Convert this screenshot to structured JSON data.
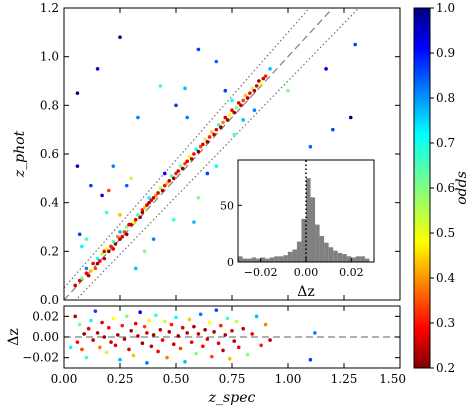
{
  "chart_data": [
    {
      "panel": "main",
      "type": "scatter",
      "xlabel": "",
      "ylabel": "z_phot",
      "xlim": [
        0,
        1.5
      ],
      "ylim": [
        0,
        1.2
      ],
      "x_ticks": [],
      "y_ticks": [
        "0.0",
        "0.2",
        "0.4",
        "0.6",
        "0.8",
        "1.0",
        "1.2"
      ],
      "reference_lines": [
        {
          "kind": "dashed",
          "description": "one-to-one",
          "slope": 1.0,
          "intercept": 0.0,
          "color": "#808080"
        },
        {
          "kind": "dotted",
          "description": "upper bound",
          "slope": 1.05,
          "intercept": 0.05,
          "color": "#707070"
        },
        {
          "kind": "dotted",
          "description": "lower bound",
          "slope": 0.95,
          "intercept": -0.05,
          "color": "#707070"
        }
      ],
      "colormap": "jet",
      "color_variable": "odds",
      "points_approx": [
        [
          0.05,
          0.06,
          0.95
        ],
        [
          0.07,
          0.08,
          0.92
        ],
        [
          0.08,
          0.09,
          0.6
        ],
        [
          0.1,
          0.11,
          0.9
        ],
        [
          0.1,
          0.13,
          0.4
        ],
        [
          0.11,
          0.1,
          0.95
        ],
        [
          0.12,
          0.12,
          0.75
        ],
        [
          0.13,
          0.15,
          0.92
        ],
        [
          0.14,
          0.13,
          0.85
        ],
        [
          0.15,
          0.15,
          0.98
        ],
        [
          0.15,
          0.17,
          0.5
        ],
        [
          0.16,
          0.16,
          0.9
        ],
        [
          0.17,
          0.19,
          0.65
        ],
        [
          0.18,
          0.17,
          0.95
        ],
        [
          0.18,
          0.2,
          0.92
        ],
        [
          0.19,
          0.21,
          0.7
        ],
        [
          0.2,
          0.2,
          0.98
        ],
        [
          0.21,
          0.22,
          0.88
        ],
        [
          0.22,
          0.24,
          0.55
        ],
        [
          0.22,
          0.21,
          0.93
        ],
        [
          0.23,
          0.23,
          0.96
        ],
        [
          0.24,
          0.26,
          0.8
        ],
        [
          0.25,
          0.25,
          0.97
        ],
        [
          0.25,
          0.28,
          0.45
        ],
        [
          0.26,
          0.26,
          0.92
        ],
        [
          0.27,
          0.28,
          0.85
        ],
        [
          0.28,
          0.3,
          0.6
        ],
        [
          0.28,
          0.27,
          0.98
        ],
        [
          0.29,
          0.31,
          0.9
        ],
        [
          0.3,
          0.31,
          0.95
        ],
        [
          0.31,
          0.32,
          0.7
        ],
        [
          0.32,
          0.33,
          0.92
        ],
        [
          0.33,
          0.35,
          0.55
        ],
        [
          0.34,
          0.34,
          0.96
        ],
        [
          0.35,
          0.37,
          0.88
        ],
        [
          0.35,
          0.36,
          0.98
        ],
        [
          0.36,
          0.38,
          0.75
        ],
        [
          0.37,
          0.39,
          0.93
        ],
        [
          0.38,
          0.4,
          0.97
        ],
        [
          0.38,
          0.42,
          0.5
        ],
        [
          0.39,
          0.41,
          0.9
        ],
        [
          0.4,
          0.42,
          0.95
        ],
        [
          0.41,
          0.43,
          0.8
        ],
        [
          0.42,
          0.44,
          0.92
        ],
        [
          0.43,
          0.46,
          0.65
        ],
        [
          0.44,
          0.45,
          0.97
        ],
        [
          0.45,
          0.47,
          0.9
        ],
        [
          0.46,
          0.48,
          0.75
        ],
        [
          0.47,
          0.49,
          0.95
        ],
        [
          0.48,
          0.51,
          0.55
        ],
        [
          0.49,
          0.5,
          0.98
        ],
        [
          0.5,
          0.52,
          0.88
        ],
        [
          0.51,
          0.53,
          0.93
        ],
        [
          0.52,
          0.55,
          0.6
        ],
        [
          0.53,
          0.54,
          0.97
        ],
        [
          0.54,
          0.56,
          0.85
        ],
        [
          0.55,
          0.57,
          0.92
        ],
        [
          0.56,
          0.59,
          0.7
        ],
        [
          0.57,
          0.58,
          0.96
        ],
        [
          0.58,
          0.6,
          0.9
        ],
        [
          0.59,
          0.62,
          0.5
        ],
        [
          0.6,
          0.61,
          0.98
        ],
        [
          0.61,
          0.63,
          0.85
        ],
        [
          0.62,
          0.64,
          0.93
        ],
        [
          0.63,
          0.66,
          0.65
        ],
        [
          0.64,
          0.65,
          0.97
        ],
        [
          0.65,
          0.67,
          0.88
        ],
        [
          0.66,
          0.69,
          0.75
        ],
        [
          0.67,
          0.68,
          0.95
        ],
        [
          0.68,
          0.7,
          0.92
        ],
        [
          0.69,
          0.72,
          0.55
        ],
        [
          0.7,
          0.71,
          0.98
        ],
        [
          0.71,
          0.73,
          0.8
        ],
        [
          0.72,
          0.75,
          0.93
        ],
        [
          0.73,
          0.74,
          0.96
        ],
        [
          0.74,
          0.76,
          0.7
        ],
        [
          0.75,
          0.78,
          0.9
        ],
        [
          0.76,
          0.77,
          0.97
        ],
        [
          0.77,
          0.79,
          0.6
        ],
        [
          0.78,
          0.81,
          0.92
        ],
        [
          0.79,
          0.8,
          0.95
        ],
        [
          0.8,
          0.82,
          0.85
        ],
        [
          0.81,
          0.84,
          0.75
        ],
        [
          0.82,
          0.83,
          0.97
        ],
        [
          0.83,
          0.85,
          0.9
        ],
        [
          0.84,
          0.87,
          0.65
        ],
        [
          0.85,
          0.86,
          0.95
        ],
        [
          0.86,
          0.88,
          0.92
        ],
        [
          0.87,
          0.9,
          0.98
        ],
        [
          0.88,
          0.89,
          0.7
        ],
        [
          0.89,
          0.91,
          0.93
        ],
        [
          0.9,
          0.92,
          0.88
        ],
        [
          0.06,
          0.55,
          0.25
        ],
        [
          0.07,
          0.27,
          0.35
        ],
        [
          0.1,
          0.25,
          0.55
        ],
        [
          0.08,
          0.22,
          0.5
        ],
        [
          0.12,
          0.47,
          0.35
        ],
        [
          0.17,
          0.43,
          0.3
        ],
        [
          0.19,
          0.36,
          0.55
        ],
        [
          0.22,
          0.55,
          0.4
        ],
        [
          0.28,
          0.47,
          0.38
        ],
        [
          0.32,
          0.13,
          0.45
        ],
        [
          0.36,
          0.2,
          0.6
        ],
        [
          0.4,
          0.25,
          0.4
        ],
        [
          0.45,
          0.52,
          0.3
        ],
        [
          0.49,
          0.33,
          0.55
        ],
        [
          0.55,
          0.75,
          0.4
        ],
        [
          0.58,
          0.32,
          0.45
        ],
        [
          0.6,
          0.42,
          0.6
        ],
        [
          0.64,
          0.52,
          0.35
        ],
        [
          0.68,
          0.55,
          0.5
        ],
        [
          0.72,
          0.86,
          0.35
        ],
        [
          0.76,
          0.68,
          0.55
        ],
        [
          0.8,
          0.74,
          0.45
        ],
        [
          0.06,
          0.85,
          0.2
        ],
        [
          0.15,
          0.95,
          0.25
        ],
        [
          0.25,
          1.08,
          0.2
        ],
        [
          0.33,
          0.75,
          0.4
        ],
        [
          0.43,
          0.88,
          0.55
        ],
        [
          0.5,
          0.8,
          0.35
        ],
        [
          0.54,
          0.87,
          0.45
        ],
        [
          0.6,
          1.03,
          0.35
        ],
        [
          0.68,
          0.98,
          0.38
        ],
        [
          0.75,
          0.82,
          0.5
        ],
        [
          0.85,
          0.78,
          0.4
        ],
        [
          0.92,
          0.95,
          0.45
        ],
        [
          1.0,
          0.86,
          0.6
        ],
        [
          1.1,
          0.63,
          0.38
        ],
        [
          1.12,
          0.55,
          0.42
        ],
        [
          1.17,
          0.95,
          0.3
        ],
        [
          1.2,
          0.7,
          0.35
        ],
        [
          1.28,
          0.75,
          0.2
        ],
        [
          1.3,
          1.05,
          0.35
        ],
        [
          1.33,
          0.57,
          0.4
        ],
        [
          0.2,
          0.45,
          0.85
        ],
        [
          0.25,
          0.35,
          0.75
        ],
        [
          0.3,
          0.5,
          0.65
        ]
      ]
    },
    {
      "panel": "inset",
      "type": "histogram",
      "xlabel": "Δz",
      "ylabel": "",
      "xlim": [
        -0.03,
        0.03
      ],
      "ylim": [
        0,
        90
      ],
      "x_ticks": [
        "−0.02",
        "0.00",
        "0.02"
      ],
      "y_ticks": [
        "0",
        "50"
      ],
      "bin_width": 0.002,
      "bin_left_edges": [
        -0.03,
        -0.028,
        -0.026,
        -0.024,
        -0.022,
        -0.02,
        -0.018,
        -0.016,
        -0.014,
        -0.012,
        -0.01,
        -0.008,
        -0.006,
        -0.004,
        -0.002,
        0.0,
        0.002,
        0.004,
        0.006,
        0.008,
        0.01,
        0.012,
        0.014,
        0.016,
        0.018,
        0.02,
        0.022,
        0.024,
        0.026,
        0.028
      ],
      "counts": [
        5,
        3,
        3,
        4,
        3,
        4,
        3,
        4,
        5,
        5,
        6,
        9,
        11,
        18,
        38,
        74,
        57,
        33,
        23,
        17,
        13,
        10,
        8,
        7,
        5,
        4,
        5,
        5,
        3,
        0
      ],
      "bar_color": "#808080",
      "vline": {
        "x": 0.0,
        "style": "dotted",
        "color": "#000000"
      }
    },
    {
      "panel": "residual",
      "type": "scatter",
      "xlabel": "z_spec",
      "ylabel": "Δz",
      "xlim": [
        0,
        1.5
      ],
      "ylim": [
        -0.03,
        0.03
      ],
      "x_ticks": [
        "0.00",
        "0.25",
        "0.50",
        "0.75",
        "1.00",
        "1.25",
        "1.50"
      ],
      "y_ticks": [
        "−0.02",
        "0.00",
        "0.02"
      ],
      "zero_line": {
        "y": 0.0,
        "style": "dashed",
        "color": "#808080"
      },
      "colormap": "jet",
      "color_variable": "odds",
      "points_approx": [
        [
          0.05,
          0.02,
          0.95
        ],
        [
          0.06,
          -0.005,
          0.9
        ],
        [
          0.07,
          0.012,
          0.6
        ],
        [
          0.08,
          -0.012,
          0.85
        ],
        [
          0.09,
          0.003,
          0.98
        ],
        [
          0.1,
          -0.02,
          0.55
        ],
        [
          0.11,
          0.008,
          0.92
        ],
        [
          0.12,
          0.016,
          0.5
        ],
        [
          0.13,
          -0.003,
          0.95
        ],
        [
          0.14,
          0.025,
          0.35
        ],
        [
          0.15,
          0.004,
          0.97
        ],
        [
          0.16,
          -0.01,
          0.8
        ],
        [
          0.17,
          0.014,
          0.93
        ],
        [
          0.18,
          0.0,
          0.98
        ],
        [
          0.19,
          -0.015,
          0.65
        ],
        [
          0.2,
          0.009,
          0.9
        ],
        [
          0.21,
          -0.005,
          0.95
        ],
        [
          0.22,
          0.018,
          0.7
        ],
        [
          0.23,
          -0.008,
          0.92
        ],
        [
          0.24,
          0.002,
          0.97
        ],
        [
          0.25,
          -0.022,
          0.45
        ],
        [
          0.26,
          0.011,
          0.88
        ],
        [
          0.27,
          -0.002,
          0.96
        ],
        [
          0.28,
          0.02,
          0.6
        ],
        [
          0.29,
          -0.012,
          0.93
        ],
        [
          0.3,
          0.006,
          0.98
        ],
        [
          0.31,
          -0.018,
          0.75
        ],
        [
          0.32,
          0.013,
          0.9
        ],
        [
          0.33,
          0.001,
          0.95
        ],
        [
          0.34,
          0.024,
          0.3
        ],
        [
          0.35,
          -0.006,
          0.97
        ],
        [
          0.36,
          0.01,
          0.85
        ],
        [
          0.37,
          -0.025,
          0.4
        ],
        [
          0.37,
          0.004,
          0.93
        ],
        [
          0.38,
          0.016,
          0.7
        ],
        [
          0.39,
          -0.009,
          0.96
        ],
        [
          0.4,
          0.002,
          0.98
        ],
        [
          0.41,
          0.021,
          0.55
        ],
        [
          0.42,
          -0.014,
          0.9
        ],
        [
          0.43,
          0.007,
          0.95
        ],
        [
          0.44,
          -0.003,
          0.92
        ],
        [
          0.45,
          0.015,
          0.65
        ],
        [
          0.46,
          -0.02,
          0.8
        ],
        [
          0.47,
          0.005,
          0.97
        ],
        [
          0.48,
          0.012,
          0.88
        ],
        [
          0.49,
          -0.007,
          0.94
        ],
        [
          0.5,
          0.019,
          0.5
        ],
        [
          0.51,
          0.001,
          0.98
        ],
        [
          0.52,
          -0.011,
          0.85
        ],
        [
          0.53,
          0.009,
          0.93
        ],
        [
          0.54,
          -0.024,
          0.45
        ],
        [
          0.55,
          0.004,
          0.96
        ],
        [
          0.56,
          0.017,
          0.75
        ],
        [
          0.57,
          -0.005,
          0.92
        ],
        [
          0.58,
          0.01,
          0.97
        ],
        [
          0.59,
          -0.016,
          0.6
        ],
        [
          0.6,
          0.003,
          0.95
        ],
        [
          0.61,
          0.022,
          0.4
        ],
        [
          0.62,
          -0.009,
          0.9
        ],
        [
          0.63,
          0.007,
          0.98
        ],
        [
          0.64,
          -0.002,
          0.93
        ],
        [
          0.65,
          0.014,
          0.7
        ],
        [
          0.66,
          -0.019,
          0.85
        ],
        [
          0.67,
          0.005,
          0.96
        ],
        [
          0.68,
          0.026,
          0.35
        ],
        [
          0.69,
          -0.006,
          0.92
        ],
        [
          0.7,
          0.011,
          0.88
        ],
        [
          0.71,
          -0.013,
          0.95
        ],
        [
          0.72,
          0.002,
          0.97
        ],
        [
          0.73,
          0.018,
          0.55
        ],
        [
          0.74,
          -0.021,
          0.75
        ],
        [
          0.75,
          0.006,
          0.93
        ],
        [
          0.76,
          -0.004,
          0.98
        ],
        [
          0.77,
          0.015,
          0.65
        ],
        [
          0.78,
          -0.01,
          0.9
        ],
        [
          0.8,
          0.008,
          0.95
        ],
        [
          0.82,
          -0.017,
          0.6
        ],
        [
          0.84,
          0.003,
          0.92
        ],
        [
          0.86,
          0.02,
          0.45
        ],
        [
          0.88,
          -0.008,
          0.88
        ],
        [
          0.9,
          0.012,
          0.8
        ],
        [
          0.92,
          -0.003,
          0.96
        ],
        [
          0.03,
          -0.01,
          0.5
        ],
        [
          1.1,
          -0.022,
          0.35
        ],
        [
          1.12,
          0.004,
          0.4
        ]
      ]
    },
    {
      "panel": "colorbar",
      "type": "colorbar",
      "label": "odds",
      "colormap": "jet",
      "range": [
        0.2,
        1.0
      ],
      "ticks": [
        "0.2",
        "0.3",
        "0.4",
        "0.5",
        "0.6",
        "0.7",
        "0.8",
        "0.9",
        "1.0"
      ]
    }
  ]
}
